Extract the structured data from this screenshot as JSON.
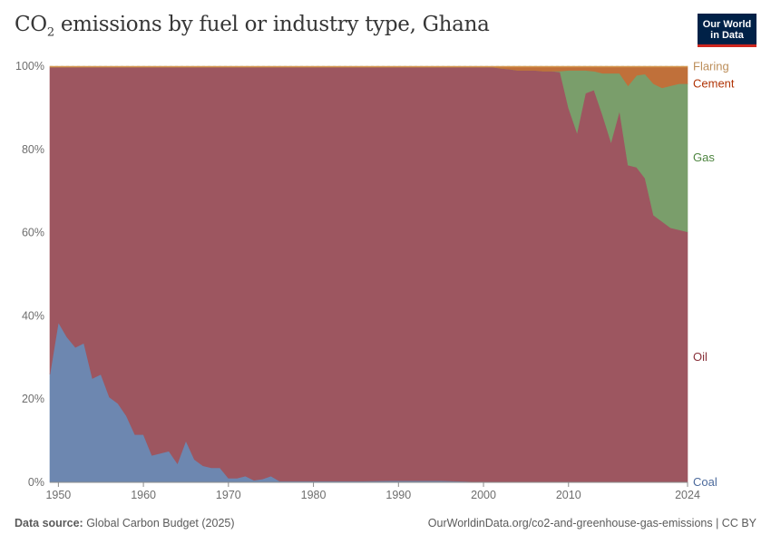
{
  "header": {
    "title_main": "CO",
    "title_sub": "2",
    "title_rest": " emissions by fuel or industry type, Ghana",
    "logo_line1": "Our World",
    "logo_line2": "in Data"
  },
  "footer": {
    "source_label": "Data source:",
    "source_value": " Global Carbon Budget (2025)",
    "link": "OurWorldinData.org/co2-and-greenhouse-gas-emissions | CC BY"
  },
  "chart_data": {
    "type": "area",
    "stacked": true,
    "normalized": true,
    "title": "CO₂ emissions by fuel or industry type, Ghana",
    "xlim": [
      1949,
      2024
    ],
    "ylim": [
      0,
      100
    ],
    "yticks": [
      0,
      20,
      40,
      60,
      80,
      100
    ],
    "ytick_labels": [
      "0%",
      "20%",
      "40%",
      "60%",
      "80%",
      "100%"
    ],
    "xticks": [
      1950,
      1960,
      1970,
      1980,
      1990,
      2000,
      2010,
      2024
    ],
    "xtick_labels": [
      "1950",
      "1960",
      "1970",
      "1980",
      "1990",
      "2000",
      "2010",
      "2024"
    ],
    "legend_position": "right",
    "series": [
      {
        "name": "Coal",
        "color": "#6d87b0",
        "label_color": "#4c6a9c",
        "points": [
          [
            1949,
            26
          ],
          [
            1950,
            38.5
          ],
          [
            1951,
            35
          ],
          [
            1952,
            32.5
          ],
          [
            1953,
            33.5
          ],
          [
            1954,
            25
          ],
          [
            1955,
            26
          ],
          [
            1956,
            20.5
          ],
          [
            1957,
            19
          ],
          [
            1958,
            16
          ],
          [
            1959,
            11.5
          ],
          [
            1960,
            11.5
          ],
          [
            1961,
            6.5
          ],
          [
            1962,
            7
          ],
          [
            1963,
            7.5
          ],
          [
            1964,
            4.5
          ],
          [
            1965,
            10
          ],
          [
            1966,
            5.5
          ],
          [
            1967,
            4
          ],
          [
            1968,
            3.5
          ],
          [
            1969,
            3.5
          ],
          [
            1970,
            1
          ],
          [
            1971,
            1
          ],
          [
            1972,
            1.5
          ],
          [
            1973,
            0.5
          ],
          [
            1974,
            0.8
          ],
          [
            1975,
            1.5
          ],
          [
            1976,
            0.3
          ],
          [
            1980,
            0.3
          ],
          [
            1985,
            0.3
          ],
          [
            1990,
            0.4
          ],
          [
            1995,
            0.4
          ],
          [
            2000,
            0.1
          ],
          [
            2005,
            0
          ],
          [
            2024,
            0
          ]
        ]
      },
      {
        "name": "Oil",
        "color": "#9d5660",
        "label_color": "#883039",
        "points": [
          [
            1949,
            74
          ],
          [
            1950,
            61.5
          ],
          [
            1951,
            65
          ],
          [
            1952,
            67.5
          ],
          [
            1953,
            66.5
          ],
          [
            1954,
            75
          ],
          [
            1955,
            74
          ],
          [
            1956,
            79.5
          ],
          [
            1957,
            81
          ],
          [
            1958,
            84
          ],
          [
            1959,
            88.5
          ],
          [
            1960,
            88.5
          ],
          [
            1961,
            93.5
          ],
          [
            1962,
            93
          ],
          [
            1963,
            92.5
          ],
          [
            1964,
            95.5
          ],
          [
            1965,
            90
          ],
          [
            1966,
            94.5
          ],
          [
            1967,
            96
          ],
          [
            1968,
            96.5
          ],
          [
            1969,
            96.5
          ],
          [
            1970,
            99
          ],
          [
            1971,
            99
          ],
          [
            1972,
            98.5
          ],
          [
            1973,
            99.5
          ],
          [
            1974,
            99.2
          ],
          [
            1975,
            98.5
          ],
          [
            1976,
            99.7
          ],
          [
            1980,
            99.7
          ],
          [
            1985,
            99.7
          ],
          [
            1990,
            99.6
          ],
          [
            1995,
            99.6
          ],
          [
            2000,
            99.9
          ],
          [
            2001,
            99.8
          ],
          [
            2002,
            99.5
          ],
          [
            2003,
            99.3
          ],
          [
            2004,
            99
          ],
          [
            2005,
            99
          ],
          [
            2006,
            99
          ],
          [
            2007,
            98.8
          ],
          [
            2008,
            98.8
          ],
          [
            2009,
            98.8
          ],
          [
            2010,
            90
          ],
          [
            2011,
            84
          ],
          [
            2012,
            93.5
          ],
          [
            2013,
            94
          ],
          [
            2014,
            88
          ],
          [
            2015,
            81.5
          ],
          [
            2016,
            89
          ],
          [
            2017,
            76
          ],
          [
            2018,
            75.5
          ],
          [
            2019,
            73
          ],
          [
            2020,
            64
          ],
          [
            2021,
            62.5
          ],
          [
            2022,
            61
          ],
          [
            2023,
            60.5
          ],
          [
            2024,
            60
          ]
        ]
      },
      {
        "name": "Gas",
        "color": "#7a9e6b",
        "label_color": "#4e8540",
        "points": [
          [
            1949,
            0
          ],
          [
            2008,
            0
          ],
          [
            2009,
            0.2
          ],
          [
            2010,
            9
          ],
          [
            2011,
            15
          ],
          [
            2012,
            5.5
          ],
          [
            2013,
            4.5
          ],
          [
            2014,
            10
          ],
          [
            2015,
            16.5
          ],
          [
            2016,
            9
          ],
          [
            2017,
            19
          ],
          [
            2018,
            22
          ],
          [
            2019,
            25
          ],
          [
            2020,
            31.5
          ],
          [
            2021,
            32
          ],
          [
            2022,
            34
          ],
          [
            2023,
            35
          ],
          [
            2024,
            35.5
          ]
        ]
      },
      {
        "name": "Cement",
        "color": "#c0703a",
        "label_color": "#b13507",
        "points": [
          [
            1949,
            0
          ],
          [
            2001,
            0
          ],
          [
            2002,
            0.3
          ],
          [
            2003,
            0.5
          ],
          [
            2004,
            0.8
          ],
          [
            2005,
            0.8
          ],
          [
            2006,
            0.8
          ],
          [
            2007,
            1
          ],
          [
            2008,
            1
          ],
          [
            2009,
            1
          ],
          [
            2010,
            0.8
          ],
          [
            2011,
            0.8
          ],
          [
            2012,
            0.8
          ],
          [
            2013,
            1
          ],
          [
            2014,
            1.5
          ],
          [
            2015,
            1.5
          ],
          [
            2016,
            1.5
          ],
          [
            2017,
            4.5
          ],
          [
            2018,
            2
          ],
          [
            2019,
            1.7
          ],
          [
            2020,
            4
          ],
          [
            2021,
            5
          ],
          [
            2022,
            4.5
          ],
          [
            2023,
            4
          ],
          [
            2024,
            4
          ]
        ]
      },
      {
        "name": "Flaring",
        "color": "#d59950",
        "label_color": "#bc8e5a",
        "points": [
          [
            1949,
            0.2
          ],
          [
            1960,
            0.2
          ],
          [
            1970,
            0.2
          ],
          [
            1980,
            0.2
          ],
          [
            1990,
            0.2
          ],
          [
            2000,
            0.2
          ],
          [
            2010,
            0.2
          ],
          [
            2024,
            0.2
          ]
        ]
      }
    ]
  }
}
